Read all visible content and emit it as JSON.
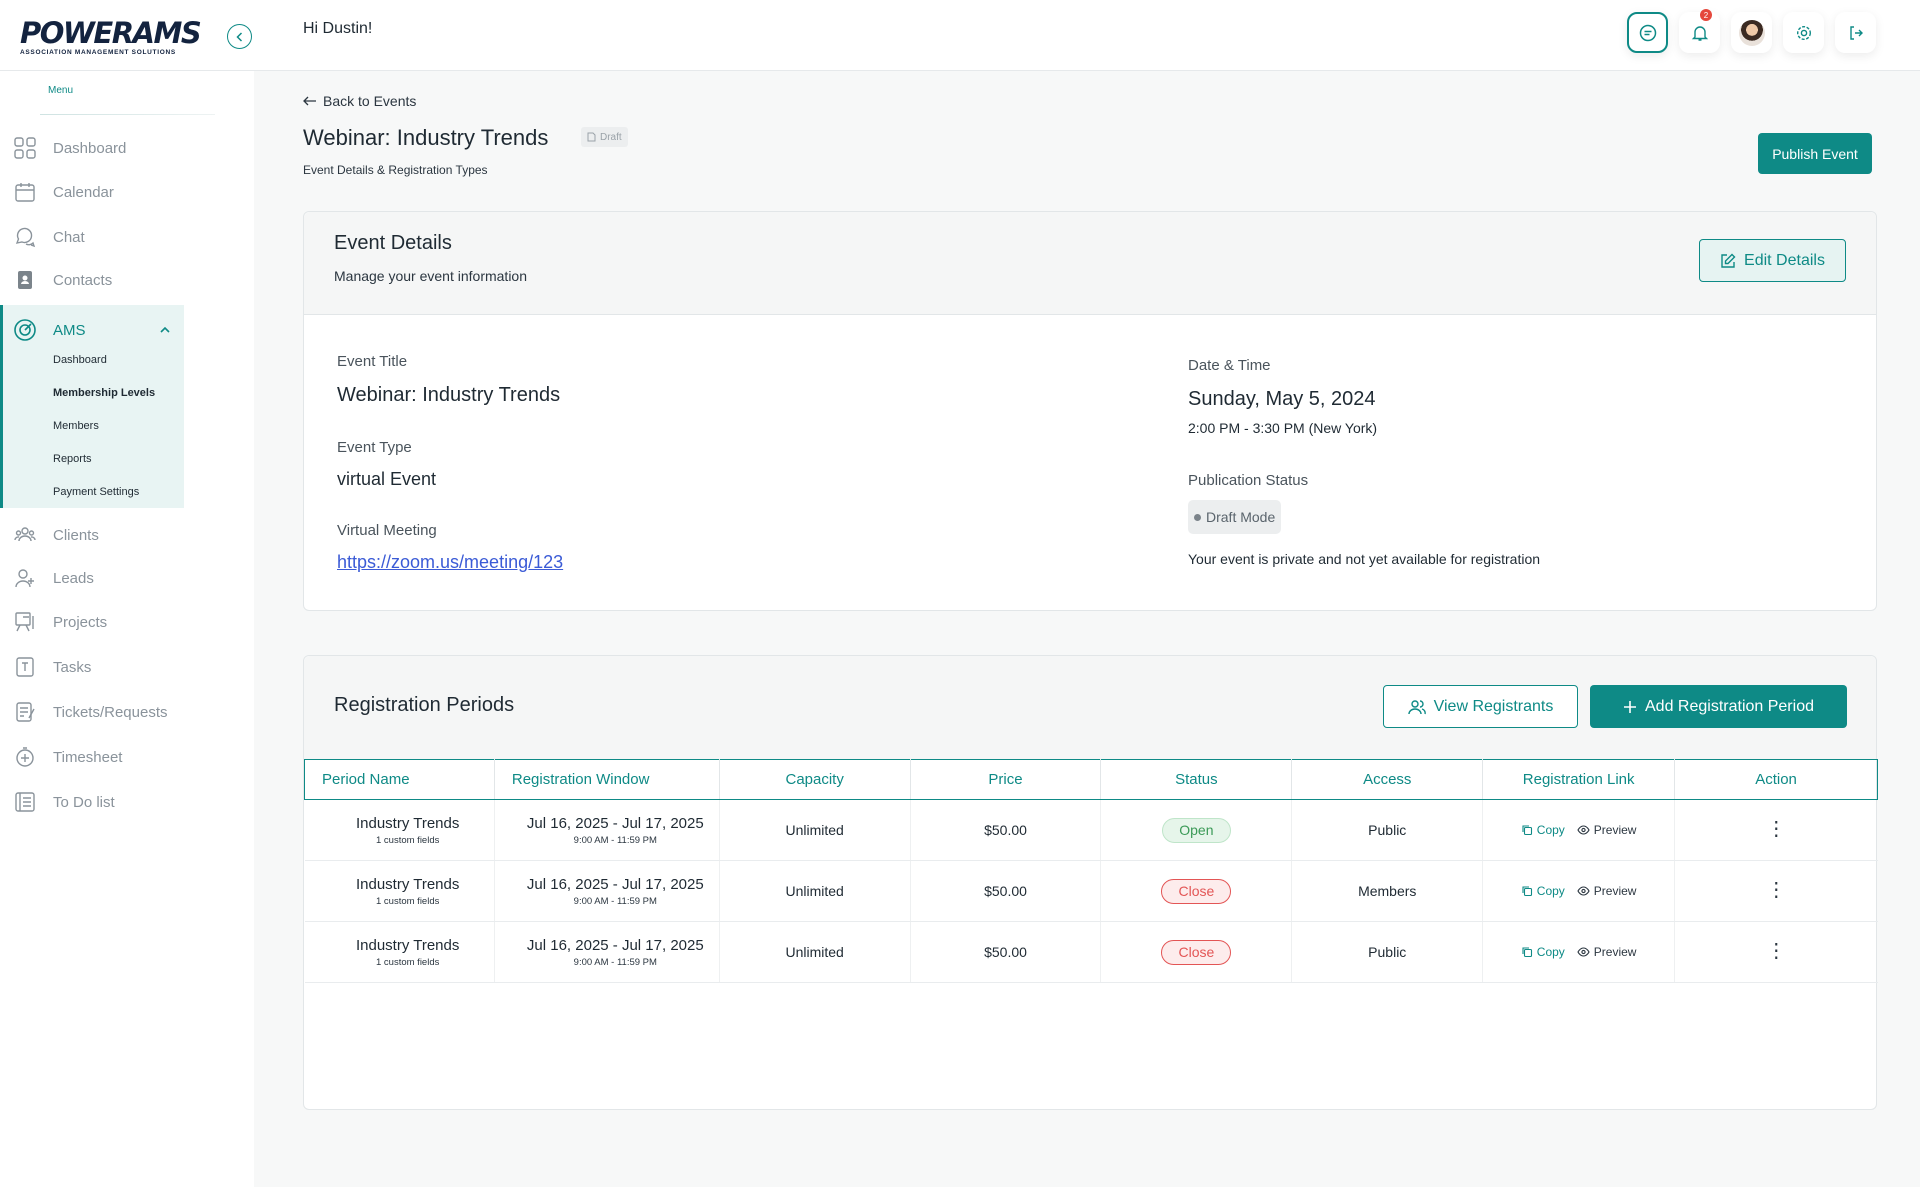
{
  "header": {
    "logo_text": "POWERAMS",
    "logo_subtitle": "ASSOCIATION MANAGEMENT SOLUTIONS",
    "greeting": "Hi Dustin!",
    "notification_count": "2"
  },
  "sidebar": {
    "menu_label": "Menu",
    "items": [
      {
        "label": "Dashboard",
        "icon": "grid-icon"
      },
      {
        "label": "Calendar",
        "icon": "calendar-icon"
      },
      {
        "label": "Chat",
        "icon": "chat-icon"
      },
      {
        "label": "Contacts",
        "icon": "contacts-icon"
      },
      {
        "label": "AMS",
        "icon": "ams-icon"
      },
      {
        "label": "Clients",
        "icon": "clients-icon"
      },
      {
        "label": "Leads",
        "icon": "leads-icon"
      },
      {
        "label": "Projects",
        "icon": "projects-icon"
      },
      {
        "label": "Tasks",
        "icon": "tasks-icon"
      },
      {
        "label": "Tickets/Requests",
        "icon": "tickets-icon"
      },
      {
        "label": "Timesheet",
        "icon": "timesheet-icon"
      },
      {
        "label": "To Do list",
        "icon": "todo-icon"
      }
    ],
    "ams_sub": [
      "Dashboard",
      "Membership Levels",
      "Members",
      "Reports",
      "Payment Settings"
    ]
  },
  "page": {
    "back_label": "Back to Events",
    "title": "Webinar: Industry Trends",
    "draft_chip": "Draft",
    "subtitle": "Event Details & Registration Types",
    "publish_label": "Publish Event"
  },
  "event_details": {
    "title": "Event Details",
    "subtitle": "Manage your event information",
    "edit_label": "Edit Details",
    "event_title_label": "Event Title",
    "event_title_value": "Webinar: Industry Trends",
    "event_type_label": "Event Type",
    "event_type_value": "virtual Event",
    "virtual_label": "Virtual Meeting",
    "virtual_link": "https://zoom.us/meeting/123",
    "date_label": "Date & Time",
    "date_value": "Sunday, May 5, 2024",
    "time_value": "2:00 PM - 3:30 PM (New York)",
    "pub_label": "Publication Status",
    "pub_value": "Draft Mode",
    "pub_note": "Your event is private and not yet available for registration"
  },
  "registration": {
    "title": "Registration Periods",
    "view_label": "View Registrants",
    "add_label": "Add Registration Period",
    "columns": [
      "Period Name",
      "Registration Window",
      "Capacity",
      "Price",
      "Status",
      "Access",
      "Registration Link",
      "Action"
    ],
    "copy_label": "Copy",
    "preview_label": "Preview",
    "rows": [
      {
        "name": "Industry Trends",
        "fields": "1 custom fields",
        "window": "Jul 16, 2025 - Jul 17, 2025",
        "hours": "9:00 AM - 11:59 PM",
        "capacity": "Unlimited",
        "price": "$50.00",
        "status": "Open",
        "access": "Public"
      },
      {
        "name": "Industry Trends",
        "fields": "1 custom fields",
        "window": "Jul 16, 2025 - Jul 17, 2025",
        "hours": "9:00 AM - 11:59 PM",
        "capacity": "Unlimited",
        "price": "$50.00",
        "status": "Close",
        "access": "Members"
      },
      {
        "name": "Industry Trends",
        "fields": "1 custom fields",
        "window": "Jul 16, 2025 - Jul 17, 2025",
        "hours": "9:00 AM - 11:59 PM",
        "capacity": "Unlimited",
        "price": "$50.00",
        "status": "Close",
        "access": "Public"
      }
    ]
  }
}
